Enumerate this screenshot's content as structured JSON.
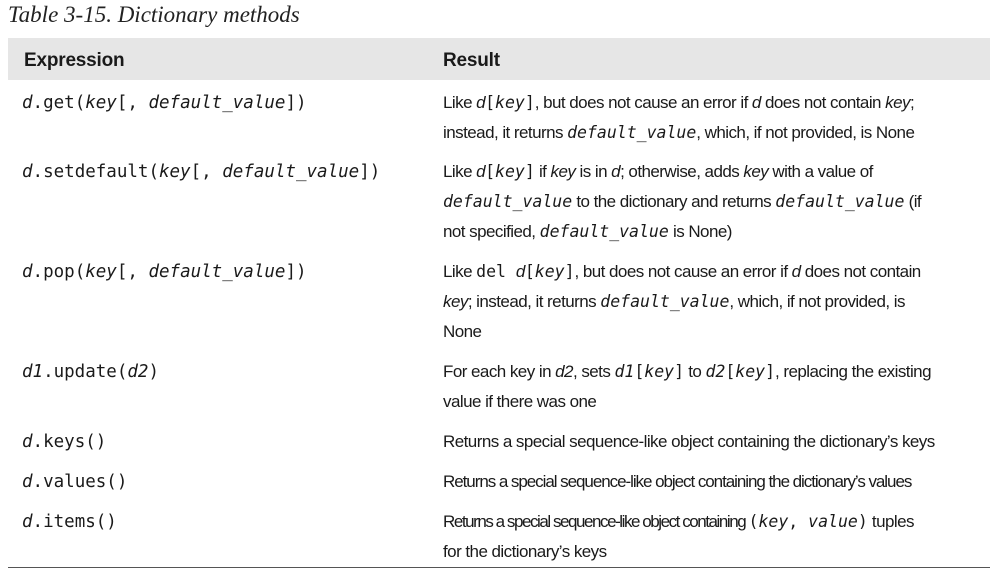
{
  "caption": "Table 3-15. Dictionary methods",
  "header": {
    "expression": "Expression",
    "result": "Result"
  },
  "rows": [
    {
      "expr": {
        "obj": "d",
        "method": ".get(",
        "arg": "key",
        "open": "[",
        "comma": ", ",
        "opt": "default_value",
        "close": "])"
      },
      "result": {
        "t1": "Like ",
        "t2": "d",
        "t3": "[",
        "t4": "key",
        "t5": "]",
        "t6": ", but does not cause an error if ",
        "t7": "d",
        "t8": " does not contain ",
        "t9": "key",
        "t10": ";",
        "t11": "instead, it returns ",
        "t12": "default_value",
        "t13": ", which, if not provided, is None"
      }
    },
    {
      "expr": {
        "obj": "d",
        "method": ".setdefault(",
        "arg": "key",
        "open": "[",
        "comma": ", ",
        "opt": "default_value",
        "close": "])"
      },
      "result": {
        "t1": "Like ",
        "t2": "d",
        "t3": "[",
        "t4": "key",
        "t5": "]",
        "t6": " if ",
        "t7": "key",
        "t8": " is in ",
        "t9": "d",
        "t10": "; otherwise, adds ",
        "t11": "key",
        "t12": " with a value of",
        "t13": "default_value",
        "t14": " to the dictionary and returns ",
        "t15": "default_value",
        "t16": " (if",
        "t17": "not specified, ",
        "t18": "default_value",
        "t19": " is None)"
      }
    },
    {
      "expr": {
        "obj": "d",
        "method": ".pop(",
        "arg": "key",
        "open": "[",
        "comma": ", ",
        "opt": "default_value",
        "close": "])"
      },
      "result": {
        "t1": "Like ",
        "t2": "del ",
        "t3": "d",
        "t4": "[",
        "t5": "key",
        "t6": "]",
        "t7": ", but does not cause an error if ",
        "t8": "d",
        "t9": " does not contain",
        "t10": "key",
        "t11": "; instead, it returns ",
        "t12": "default_value",
        "t13": ", which, if not provided, is",
        "t14": "None"
      }
    },
    {
      "expr": {
        "obj": "d1",
        "method": ".update(",
        "arg": "d2",
        "close": ")"
      },
      "result": {
        "t1": "For each key in ",
        "t2": "d2",
        "t3": ", sets ",
        "t4": "d1",
        "t5": "[",
        "t6": "key",
        "t7": "]",
        "t8": " to ",
        "t9": "d2",
        "t10": "[",
        "t11": "key",
        "t12": "]",
        "t13": ", replacing the existing",
        "t14": "value if there was one"
      }
    },
    {
      "expr": {
        "obj": "d",
        "method": ".keys()"
      },
      "result": {
        "t1": "Returns a special sequence-like object containing the dictionary’s keys"
      }
    },
    {
      "expr": {
        "obj": "d",
        "method": ".values()"
      },
      "result": {
        "t1": "Returns a special sequence-like object containing the dictionary’s values"
      }
    },
    {
      "expr": {
        "obj": "d",
        "method": ".items()"
      },
      "result": {
        "t1": "Returns a special sequence-like object containing ",
        "t2": "(",
        "t3": "key",
        "t4": ", ",
        "t5": "value",
        "t6": ")",
        "t7": " tuples",
        "t8": "for the dictionary’s keys"
      }
    }
  ]
}
